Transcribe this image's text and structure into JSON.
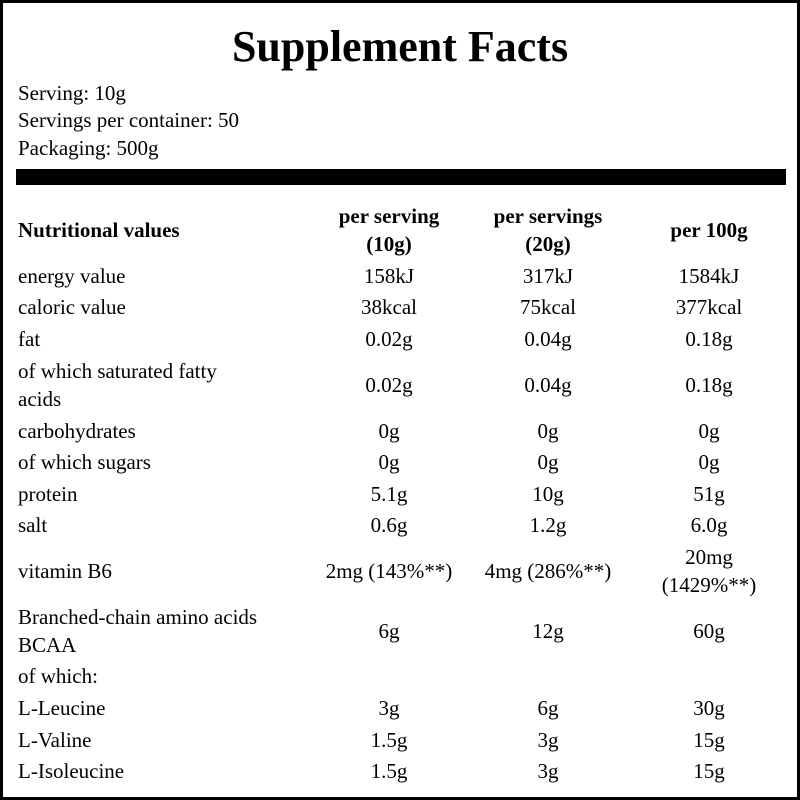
{
  "header": {
    "title": "Supplement Facts",
    "lines": [
      "Serving: 10g",
      "Servings per container: 50",
      "Packaging: 500g"
    ]
  },
  "table": {
    "columns": [
      "Nutritional values",
      "per serving\n(10g)",
      "per servings\n(20g)",
      "per 100g"
    ],
    "rows": [
      {
        "label": "energy value",
        "values": [
          "158kJ",
          "317kJ",
          "1584kJ"
        ]
      },
      {
        "label": "caloric value",
        "values": [
          "38kcal",
          "75kcal",
          "377kcal"
        ]
      },
      {
        "label": "fat",
        "values": [
          "0.02g",
          "0.04g",
          "0.18g"
        ]
      },
      {
        "label": "of which saturated fatty\nacids",
        "values": [
          "0.02g",
          "0.04g",
          "0.18g"
        ]
      },
      {
        "label": "carbohydrates",
        "values": [
          "0g",
          "0g",
          "0g"
        ]
      },
      {
        "label": "of which sugars",
        "values": [
          "0g",
          "0g",
          "0g"
        ]
      },
      {
        "label": "protein",
        "values": [
          "5.1g",
          "10g",
          "51g"
        ]
      },
      {
        "label": "salt",
        "values": [
          "0.6g",
          "1.2g",
          "6.0g"
        ]
      },
      {
        "label": "vitamin B6",
        "values": [
          "2mg (143%**)",
          "4mg (286%**)",
          "20mg\n(1429%**)"
        ]
      },
      {
        "label": "Branched-chain amino acids\nBCAA",
        "values": [
          "6g",
          "12g",
          "60g"
        ]
      },
      {
        "label": "of which:"
      },
      {
        "label": "L-Leucine",
        "values": [
          "3g",
          "6g",
          "30g"
        ]
      },
      {
        "label": "L-Valine",
        "values": [
          "1.5g",
          "3g",
          "15g"
        ]
      },
      {
        "label": "L-Isoleucine",
        "values": [
          "1.5g",
          "3g",
          "15g"
        ]
      }
    ]
  }
}
